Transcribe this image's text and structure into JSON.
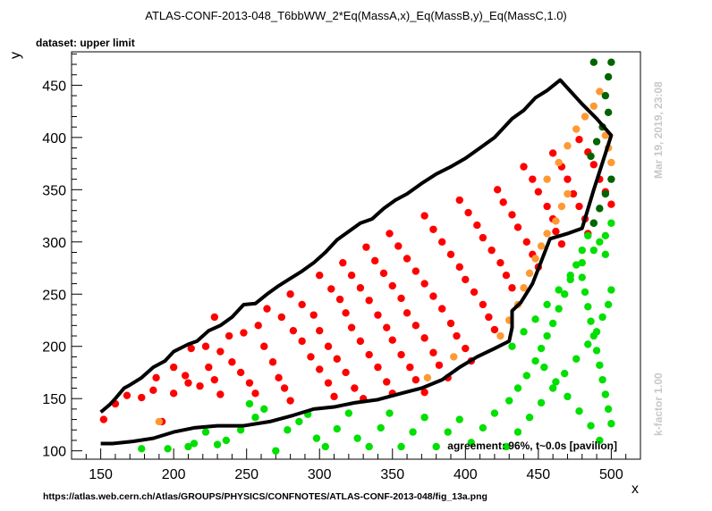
{
  "chart_data": {
    "type": "scatter",
    "title": "ATLAS-CONF-2013-048_T6bbWW_2*Eq(MassA,x)_Eq(MassB,y)_Eq(MassC,1.0)",
    "subtitle": "dataset: upper limit",
    "xlabel": "x",
    "ylabel": "y",
    "xlim": [
      130,
      520
    ],
    "ylim": [
      92,
      482
    ],
    "xticks": [
      150,
      200,
      250,
      300,
      350,
      400,
      450,
      500
    ],
    "yticks": [
      100,
      150,
      200,
      250,
      300,
      350,
      400,
      450
    ],
    "grid": false,
    "annotation": "agreement: 96%, t~0.0s [pavilion]",
    "side_text_top": "Mar 19, 2019, 23:08",
    "side_text_bottom": "k-factor 1.00",
    "footer": "https://atlas.web.cern.ch/Atlas/GROUPS/PHYSICS/CONFNOTES/ATLAS-CONF-2013-048/fig_13a.png",
    "colors": {
      "red": "#ff0000",
      "orange": "#ff9933",
      "green": "#00e000",
      "darkgreen": "#006400",
      "contour": "#000000"
    },
    "series": [
      {
        "color": "red",
        "points": [
          [
            152,
            130
          ],
          [
            160,
            145
          ],
          [
            168,
            153
          ],
          [
            178,
            151
          ],
          [
            186,
            158
          ],
          [
            192,
            128
          ],
          [
            200,
            155
          ],
          [
            208,
            172
          ],
          [
            188,
            170
          ],
          [
            200,
            180
          ],
          [
            210,
            165
          ],
          [
            218,
            162
          ],
          [
            224,
            180
          ],
          [
            228,
            168
          ],
          [
            232,
            154
          ],
          [
            212,
            198
          ],
          [
            222,
            200
          ],
          [
            232,
            195
          ],
          [
            240,
            185
          ],
          [
            246,
            175
          ],
          [
            252,
            165
          ],
          [
            256,
            155
          ],
          [
            258,
            220
          ],
          [
            248,
            213
          ],
          [
            238,
            210
          ],
          [
            228,
            228
          ],
          [
            262,
            200
          ],
          [
            268,
            185
          ],
          [
            272,
            170
          ],
          [
            276,
            160
          ],
          [
            280,
            148
          ],
          [
            264,
            236
          ],
          [
            274,
            228
          ],
          [
            282,
            215
          ],
          [
            288,
            205
          ],
          [
            294,
            190
          ],
          [
            300,
            178
          ],
          [
            306,
            165
          ],
          [
            310,
            152
          ],
          [
            280,
            250
          ],
          [
            288,
            240
          ],
          [
            296,
            230
          ],
          [
            300,
            215
          ],
          [
            306,
            200
          ],
          [
            312,
            188
          ],
          [
            318,
            175
          ],
          [
            324,
            160
          ],
          [
            330,
            150
          ],
          [
            300,
            268
          ],
          [
            308,
            255
          ],
          [
            314,
            245
          ],
          [
            318,
            232
          ],
          [
            322,
            218
          ],
          [
            328,
            205
          ],
          [
            334,
            192
          ],
          [
            340,
            180
          ],
          [
            346,
            166
          ],
          [
            350,
            155
          ],
          [
            316,
            280
          ],
          [
            322,
            268
          ],
          [
            328,
            256
          ],
          [
            334,
            244
          ],
          [
            340,
            230
          ],
          [
            346,
            218
          ],
          [
            350,
            206
          ],
          [
            356,
            192
          ],
          [
            362,
            180
          ],
          [
            366,
            168
          ],
          [
            372,
            156
          ],
          [
            332,
            295
          ],
          [
            338,
            282
          ],
          [
            344,
            270
          ],
          [
            350,
            258
          ],
          [
            356,
            246
          ],
          [
            360,
            232
          ],
          [
            366,
            220
          ],
          [
            372,
            208
          ],
          [
            378,
            194
          ],
          [
            382,
            182
          ],
          [
            388,
            170
          ],
          [
            348,
            308
          ],
          [
            354,
            296
          ],
          [
            360,
            284
          ],
          [
            366,
            272
          ],
          [
            372,
            260
          ],
          [
            378,
            248
          ],
          [
            384,
            236
          ],
          [
            390,
            222
          ],
          [
            394,
            210
          ],
          [
            400,
            198
          ],
          [
            404,
            186
          ],
          [
            372,
            325
          ],
          [
            378,
            312
          ],
          [
            384,
            300
          ],
          [
            390,
            288
          ],
          [
            396,
            276
          ],
          [
            400,
            264
          ],
          [
            406,
            252
          ],
          [
            412,
            240
          ],
          [
            416,
            228
          ],
          [
            420,
            216
          ],
          [
            396,
            340
          ],
          [
            402,
            328
          ],
          [
            408,
            316
          ],
          [
            412,
            304
          ],
          [
            418,
            292
          ],
          [
            424,
            280
          ],
          [
            428,
            268
          ],
          [
            432,
            256
          ],
          [
            422,
            350
          ],
          [
            426,
            338
          ],
          [
            432,
            326
          ],
          [
            436,
            314
          ],
          [
            442,
            300
          ],
          [
            446,
            288
          ],
          [
            450,
            276
          ],
          [
            440,
            372
          ],
          [
            446,
            360
          ],
          [
            450,
            348
          ],
          [
            456,
            334
          ],
          [
            460,
            322
          ],
          [
            462,
            310
          ],
          [
            466,
            298
          ],
          [
            460,
            385
          ],
          [
            466,
            372
          ],
          [
            470,
            360
          ],
          [
            474,
            346
          ],
          [
            478,
            334
          ],
          [
            482,
            322
          ],
          [
            484,
            308
          ],
          [
            478,
            398
          ],
          [
            484,
            386
          ],
          [
            488,
            374
          ],
          [
            492,
            360
          ],
          [
            496,
            348
          ],
          [
            500,
            336
          ]
        ]
      },
      {
        "color": "orange",
        "points": [
          [
            190,
            128
          ],
          [
            374,
            170
          ],
          [
            392,
            190
          ],
          [
            424,
            210
          ],
          [
            430,
            225
          ],
          [
            436,
            240
          ],
          [
            440,
            256
          ],
          [
            444,
            270
          ],
          [
            448,
            284
          ],
          [
            452,
            296
          ],
          [
            456,
            308
          ],
          [
            462,
            320
          ],
          [
            466,
            334
          ],
          [
            470,
            346
          ],
          [
            456,
            360
          ],
          [
            464,
            376
          ],
          [
            470,
            392
          ],
          [
            476,
            408
          ],
          [
            482,
            420
          ],
          [
            488,
            430
          ],
          [
            492,
            444
          ],
          [
            496,
            402
          ],
          [
            498,
            390
          ],
          [
            500,
            376
          ]
        ]
      },
      {
        "color": "green",
        "points": [
          [
            178,
            102
          ],
          [
            196,
            102
          ],
          [
            210,
            104
          ],
          [
            214,
            107
          ],
          [
            222,
            118
          ],
          [
            230,
            106
          ],
          [
            236,
            110
          ],
          [
            246,
            120
          ],
          [
            252,
            145
          ],
          [
            256,
            132
          ],
          [
            262,
            140
          ],
          [
            270,
            100
          ],
          [
            278,
            120
          ],
          [
            286,
            128
          ],
          [
            292,
            135
          ],
          [
            298,
            112
          ],
          [
            304,
            104
          ],
          [
            312,
            121
          ],
          [
            320,
            136
          ],
          [
            326,
            112
          ],
          [
            334,
            104
          ],
          [
            342,
            122
          ],
          [
            348,
            136
          ],
          [
            356,
            104
          ],
          [
            364,
            118
          ],
          [
            372,
            132
          ],
          [
            380,
            104
          ],
          [
            388,
            118
          ],
          [
            396,
            130
          ],
          [
            404,
            108
          ],
          [
            412,
            122
          ],
          [
            420,
            136
          ],
          [
            430,
            148
          ],
          [
            436,
            160
          ],
          [
            442,
            172
          ],
          [
            448,
            186
          ],
          [
            452,
            198
          ],
          [
            456,
            210
          ],
          [
            460,
            222
          ],
          [
            464,
            236
          ],
          [
            468,
            250
          ],
          [
            472,
            264
          ],
          [
            476,
            278
          ],
          [
            480,
            292
          ],
          [
            484,
            306
          ],
          [
            488,
            318
          ],
          [
            492,
            300
          ],
          [
            496,
            288
          ],
          [
            428,
            104
          ],
          [
            436,
            118
          ],
          [
            444,
            132
          ],
          [
            452,
            146
          ],
          [
            460,
            160
          ],
          [
            468,
            174
          ],
          [
            476,
            188
          ],
          [
            484,
            202
          ],
          [
            490,
            214
          ],
          [
            494,
            228
          ],
          [
            498,
            240
          ],
          [
            500,
            254
          ],
          [
            432,
            200
          ],
          [
            440,
            214
          ],
          [
            448,
            226
          ],
          [
            456,
            240
          ],
          [
            464,
            254
          ],
          [
            472,
            268
          ],
          [
            480,
            280
          ],
          [
            488,
            292
          ],
          [
            496,
            306
          ],
          [
            500,
            318
          ],
          [
            492,
            110
          ],
          [
            486,
            124
          ],
          [
            478,
            138
          ],
          [
            470,
            152
          ],
          [
            462,
            166
          ],
          [
            454,
            180
          ],
          [
            500,
            126
          ],
          [
            498,
            140
          ],
          [
            496,
            154
          ],
          [
            494,
            168
          ],
          [
            492,
            182
          ],
          [
            490,
            196
          ],
          [
            488,
            210
          ],
          [
            486,
            224
          ],
          [
            484,
            238
          ],
          [
            482,
            252
          ],
          [
            480,
            266
          ]
        ]
      },
      {
        "color": "darkgreen",
        "points": [
          [
            488,
            472
          ],
          [
            500,
            472
          ],
          [
            498,
            458
          ],
          [
            496,
            440
          ],
          [
            498,
            424
          ],
          [
            494,
            410
          ],
          [
            490,
            396
          ],
          [
            486,
            382
          ],
          [
            500,
            360
          ],
          [
            496,
            346
          ],
          [
            492,
            332
          ],
          [
            488,
            318
          ]
        ]
      }
    ],
    "contour": [
      [
        150,
        137
      ],
      [
        156,
        144
      ],
      [
        160,
        150
      ],
      [
        166,
        160
      ],
      [
        170,
        163
      ],
      [
        178,
        170
      ],
      [
        186,
        180
      ],
      [
        194,
        186
      ],
      [
        200,
        195
      ],
      [
        210,
        202
      ],
      [
        216,
        205
      ],
      [
        224,
        215
      ],
      [
        232,
        220
      ],
      [
        240,
        228
      ],
      [
        248,
        240
      ],
      [
        256,
        241
      ],
      [
        264,
        250
      ],
      [
        272,
        258
      ],
      [
        280,
        265
      ],
      [
        288,
        272
      ],
      [
        296,
        280
      ],
      [
        304,
        290
      ],
      [
        312,
        302
      ],
      [
        320,
        310
      ],
      [
        328,
        318
      ],
      [
        336,
        322
      ],
      [
        344,
        332
      ],
      [
        352,
        340
      ],
      [
        360,
        346
      ],
      [
        370,
        356
      ],
      [
        380,
        365
      ],
      [
        390,
        372
      ],
      [
        400,
        380
      ],
      [
        410,
        390
      ],
      [
        420,
        400
      ],
      [
        432,
        418
      ],
      [
        440,
        426
      ],
      [
        448,
        438
      ],
      [
        456,
        445
      ],
      [
        465,
        455
      ],
      [
        480,
        432
      ],
      [
        490,
        418
      ],
      [
        500,
        402
      ],
      [
        488,
        350
      ],
      [
        480,
        313
      ],
      [
        470,
        308
      ],
      [
        458,
        303
      ],
      [
        453,
        285
      ],
      [
        446,
        260
      ],
      [
        438,
        242
      ],
      [
        432,
        234
      ],
      [
        432,
        218
      ],
      [
        430,
        205
      ],
      [
        420,
        198
      ],
      [
        408,
        190
      ],
      [
        396,
        180
      ],
      [
        384,
        168
      ],
      [
        370,
        160
      ],
      [
        356,
        155
      ],
      [
        340,
        149
      ],
      [
        324,
        146
      ],
      [
        310,
        142
      ],
      [
        296,
        140
      ],
      [
        282,
        134
      ],
      [
        266,
        128
      ],
      [
        248,
        124
      ],
      [
        230,
        124
      ],
      [
        214,
        122
      ],
      [
        200,
        118
      ],
      [
        186,
        112
      ],
      [
        172,
        109
      ],
      [
        158,
        107
      ],
      [
        150,
        107
      ]
    ]
  }
}
